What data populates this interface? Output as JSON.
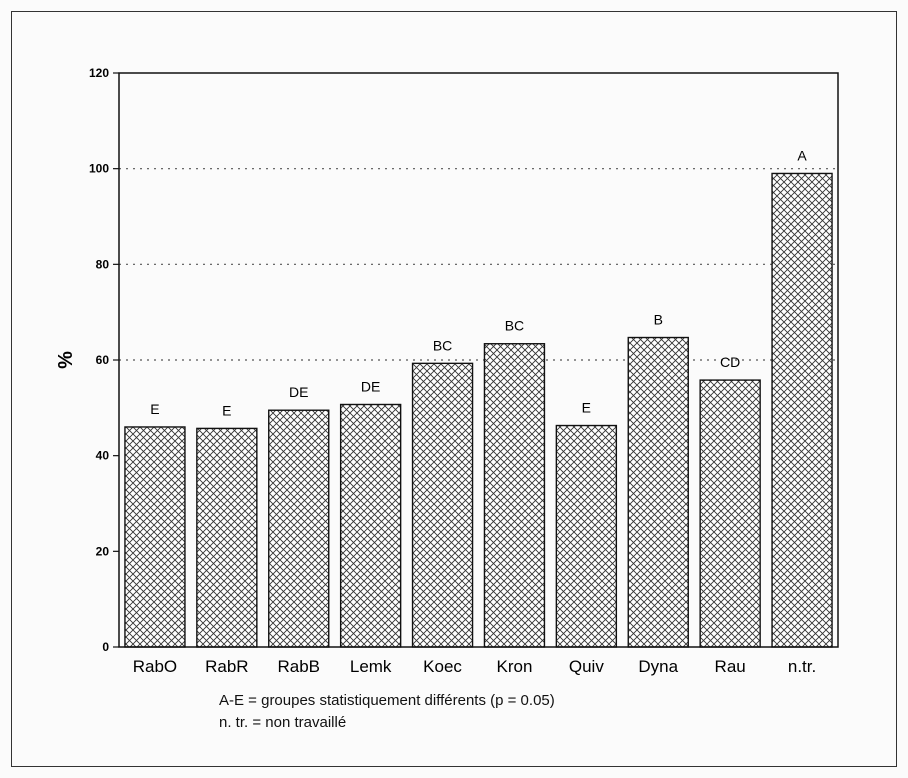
{
  "chart_data": {
    "type": "bar",
    "title": "",
    "xlabel": "",
    "ylabel": "%",
    "ylim": [
      0,
      120
    ],
    "yticks": [
      0,
      20,
      40,
      60,
      80,
      100,
      120
    ],
    "grid": "dotted horizontal lines at 60, 80 and 100",
    "bar_fill": "cross-hatch",
    "categories": [
      "RabO",
      "RabR",
      "RabB",
      "Lemk",
      "Koec",
      "Kron",
      "Quiv",
      "Dyna",
      "Rau",
      "n.tr."
    ],
    "values": [
      46,
      45.7,
      49.5,
      50.7,
      59.3,
      63.4,
      46.3,
      64.7,
      55.8,
      99
    ],
    "group_labels": [
      "E",
      "E",
      "DE",
      "DE",
      "BC",
      "BC",
      "E",
      "B",
      "CD",
      "A"
    ]
  },
  "notes": {
    "line1": "A-E  =  groupes statistiquement différents (p = 0.05)",
    "line2": "n. tr. = non travaillé"
  },
  "colors": {
    "bar_fill": "#ffffff",
    "hatch": "#333333",
    "axis": "#111111",
    "grid": "#555555"
  }
}
